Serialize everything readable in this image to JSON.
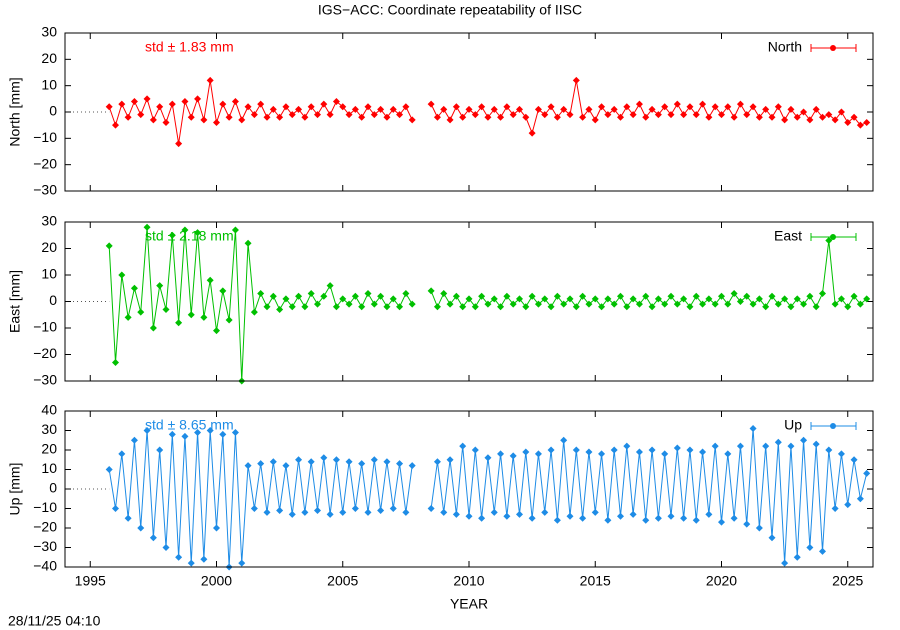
{
  "title": "IGS−ACC: Coordinate repeatability of IISC",
  "timestamp": "28/11/25 04:10",
  "chart_data": [
    {
      "type": "line",
      "ylabel": "North [mm]",
      "annotation": "std ± 1.83 mm",
      "legend": "upper right",
      "xlim": [
        1994,
        2026
      ],
      "ylim": [
        -30,
        30
      ],
      "xticks": [
        1995,
        2000,
        2005,
        2010,
        2015,
        2020,
        2025
      ],
      "yticks": [
        {
          "value": -30,
          "label": "−30"
        },
        {
          "value": -20,
          "label": "−20"
        },
        {
          "value": -10,
          "label": "−10"
        },
        0,
        10,
        20,
        30
      ],
      "x": [
        1995.75,
        1996,
        1996.25,
        1996.5,
        1996.75,
        1997,
        1997.25,
        1997.5,
        1997.75,
        1998,
        1998.25,
        1998.5,
        1998.75,
        1999,
        1999.25,
        1999.5,
        1999.75,
        2000,
        2000.25,
        2000.5,
        2000.75,
        2001,
        2001.25,
        2001.5,
        2001.75,
        2002,
        2002.25,
        2002.5,
        2002.75,
        2003,
        2003.25,
        2003.5,
        2003.75,
        2004,
        2004.25,
        2004.5,
        2004.75,
        2005,
        2005.25,
        2005.5,
        2005.75,
        2006,
        2006.25,
        2006.5,
        2006.75,
        2007,
        2007.25,
        2007.5,
        2007.75,
        2008,
        2008.25,
        2008.5,
        2008.75,
        2009,
        2009.25,
        2009.5,
        2009.75,
        2010,
        2010.25,
        2010.5,
        2010.75,
        2011,
        2011.25,
        2011.5,
        2011.75,
        2012,
        2012.25,
        2012.5,
        2012.75,
        2013,
        2013.25,
        2013.5,
        2013.75,
        2014,
        2014.25,
        2014.5,
        2014.75,
        2015,
        2015.25,
        2015.5,
        2015.75,
        2016,
        2016.25,
        2016.5,
        2016.75,
        2017,
        2017.25,
        2017.5,
        2017.75,
        2018,
        2018.25,
        2018.5,
        2018.75,
        2019,
        2019.25,
        2019.5,
        2019.75,
        2020,
        2020.25,
        2020.5,
        2020.75,
        2021,
        2021.25,
        2021.5,
        2021.75,
        2022,
        2022.25,
        2022.5,
        2022.75,
        2023,
        2023.25,
        2023.5,
        2023.75,
        2024,
        2024.25,
        2024.5,
        2024.75,
        2025,
        2025.25,
        2025.5,
        2025.75
      ],
      "series": [
        {
          "name": "North",
          "color": "#ff0000",
          "values": [
            2,
            -5,
            3,
            -2,
            4,
            -1,
            5,
            -3,
            2,
            -4,
            3,
            -12,
            4,
            -2,
            5,
            -3,
            12,
            -4,
            3,
            -2,
            4,
            -3,
            2,
            -1,
            3,
            -2,
            1,
            -2,
            2,
            -1,
            1,
            -2,
            2,
            -1,
            3,
            -1,
            4,
            2,
            -1,
            1,
            -2,
            2,
            -1,
            1,
            -2,
            1,
            -1,
            2,
            -3,
            null,
            null,
            3,
            -2,
            1,
            -3,
            2,
            -2,
            1,
            -1,
            2,
            -2,
            1,
            -2,
            2,
            -1,
            1,
            -2,
            -8,
            1,
            -1,
            2,
            -2,
            1,
            -1,
            12,
            -2,
            1,
            -3,
            2,
            -1,
            1,
            -2,
            2,
            -1,
            3,
            -2,
            1,
            -1,
            2,
            -1,
            3,
            -1,
            2,
            -1,
            3,
            -2,
            2,
            -1,
            2,
            -2,
            3,
            -1,
            2,
            -2,
            1,
            -2,
            2,
            -3,
            1,
            -2,
            0,
            -3,
            1,
            -2,
            -1,
            -3,
            0,
            -4,
            -2,
            -5,
            -4
          ]
        }
      ]
    },
    {
      "type": "line",
      "ylabel": "East [mm]",
      "annotation": "std ± 2.18 mm",
      "legend": "upper right",
      "xlim": [
        1994,
        2026
      ],
      "ylim": [
        -30,
        30
      ],
      "xticks": [
        1995,
        2000,
        2005,
        2010,
        2015,
        2020,
        2025
      ],
      "yticks": [
        {
          "value": -30,
          "label": "−30"
        },
        {
          "value": -20,
          "label": "−20"
        },
        {
          "value": -10,
          "label": "−10"
        },
        0,
        10,
        20,
        30
      ],
      "x": [
        1995.75,
        1996,
        1996.25,
        1996.5,
        1996.75,
        1997,
        1997.25,
        1997.5,
        1997.75,
        1998,
        1998.25,
        1998.5,
        1998.75,
        1999,
        1999.25,
        1999.5,
        1999.75,
        2000,
        2000.25,
        2000.5,
        2000.75,
        2001,
        2001.25,
        2001.5,
        2001.75,
        2002,
        2002.25,
        2002.5,
        2002.75,
        2003,
        2003.25,
        2003.5,
        2003.75,
        2004,
        2004.25,
        2004.5,
        2004.75,
        2005,
        2005.25,
        2005.5,
        2005.75,
        2006,
        2006.25,
        2006.5,
        2006.75,
        2007,
        2007.25,
        2007.5,
        2007.75,
        2008,
        2008.25,
        2008.5,
        2008.75,
        2009,
        2009.25,
        2009.5,
        2009.75,
        2010,
        2010.25,
        2010.5,
        2010.75,
        2011,
        2011.25,
        2011.5,
        2011.75,
        2012,
        2012.25,
        2012.5,
        2012.75,
        2013,
        2013.25,
        2013.5,
        2013.75,
        2014,
        2014.25,
        2014.5,
        2014.75,
        2015,
        2015.25,
        2015.5,
        2015.75,
        2016,
        2016.25,
        2016.5,
        2016.75,
        2017,
        2017.25,
        2017.5,
        2017.75,
        2018,
        2018.25,
        2018.5,
        2018.75,
        2019,
        2019.25,
        2019.5,
        2019.75,
        2020,
        2020.25,
        2020.5,
        2020.75,
        2021,
        2021.25,
        2021.5,
        2021.75,
        2022,
        2022.25,
        2022.5,
        2022.75,
        2023,
        2023.25,
        2023.5,
        2023.75,
        2024,
        2024.25,
        2024.5,
        2024.75,
        2025,
        2025.25,
        2025.5,
        2025.75
      ],
      "series": [
        {
          "name": "East",
          "color": "#00c000",
          "values": [
            21,
            -23,
            10,
            -6,
            5,
            -4,
            28,
            -10,
            6,
            -3,
            25,
            -8,
            27,
            -5,
            26,
            -6,
            8,
            -11,
            4,
            -7,
            27,
            -30,
            22,
            -4,
            3,
            -2,
            2,
            -3,
            1,
            -2,
            2,
            -2,
            3,
            -1,
            2,
            6,
            -2,
            1,
            -1,
            2,
            -2,
            3,
            -1,
            2,
            -2,
            1,
            -2,
            3,
            -1,
            null,
            null,
            4,
            -2,
            3,
            -1,
            2,
            -2,
            1,
            -2,
            2,
            -1,
            1,
            -2,
            2,
            -1,
            1,
            -2,
            2,
            -1,
            1,
            -2,
            2,
            -1,
            1,
            -2,
            2,
            -1,
            1,
            -2,
            1,
            -1,
            2,
            -2,
            1,
            -1,
            2,
            -2,
            1,
            -1,
            2,
            -1,
            1,
            -2,
            2,
            -1,
            1,
            -1,
            2,
            -1,
            3,
            0,
            2,
            -1,
            1,
            -2,
            2,
            -1,
            1,
            -2,
            1,
            -1,
            2,
            -2,
            3,
            23,
            -1,
            1,
            -2,
            2,
            -1,
            1
          ]
        }
      ]
    },
    {
      "type": "line",
      "ylabel": "Up [mm]",
      "annotation": "std ± 8.65 mm",
      "legend": "upper right",
      "xlabel": "YEAR",
      "xlim": [
        1994,
        2026
      ],
      "ylim": [
        -40,
        40
      ],
      "xticks": [
        1995,
        2000,
        2005,
        2010,
        2015,
        2020,
        2025
      ],
      "yticks": [
        {
          "value": -40,
          "label": "−40"
        },
        {
          "value": -30,
          "label": "−30"
        },
        {
          "value": -20,
          "label": "−20"
        },
        {
          "value": -10,
          "label": "−10"
        },
        0,
        10,
        20,
        30,
        40
      ],
      "x": [
        1995.75,
        1996,
        1996.25,
        1996.5,
        1996.75,
        1997,
        1997.25,
        1997.5,
        1997.75,
        1998,
        1998.25,
        1998.5,
        1998.75,
        1999,
        1999.25,
        1999.5,
        1999.75,
        2000,
        2000.25,
        2000.5,
        2000.75,
        2001,
        2001.25,
        2001.5,
        2001.75,
        2002,
        2002.25,
        2002.5,
        2002.75,
        2003,
        2003.25,
        2003.5,
        2003.75,
        2004,
        2004.25,
        2004.5,
        2004.75,
        2005,
        2005.25,
        2005.5,
        2005.75,
        2006,
        2006.25,
        2006.5,
        2006.75,
        2007,
        2007.25,
        2007.5,
        2007.75,
        2008,
        2008.25,
        2008.5,
        2008.75,
        2009,
        2009.25,
        2009.5,
        2009.75,
        2010,
        2010.25,
        2010.5,
        2010.75,
        2011,
        2011.25,
        2011.5,
        2011.75,
        2012,
        2012.25,
        2012.5,
        2012.75,
        2013,
        2013.25,
        2013.5,
        2013.75,
        2014,
        2014.25,
        2014.5,
        2014.75,
        2015,
        2015.25,
        2015.5,
        2015.75,
        2016,
        2016.25,
        2016.5,
        2016.75,
        2017,
        2017.25,
        2017.5,
        2017.75,
        2018,
        2018.25,
        2018.5,
        2018.75,
        2019,
        2019.25,
        2019.5,
        2019.75,
        2020,
        2020.25,
        2020.5,
        2020.75,
        2021,
        2021.25,
        2021.5,
        2021.75,
        2022,
        2022.25,
        2022.5,
        2022.75,
        2023,
        2023.25,
        2023.5,
        2023.75,
        2024,
        2024.25,
        2024.5,
        2024.75,
        2025,
        2025.25,
        2025.5,
        2025.75
      ],
      "series": [
        {
          "name": "Up",
          "color": "#1e8ce6",
          "values": [
            10,
            -10,
            18,
            -15,
            25,
            -20,
            30,
            -25,
            20,
            -30,
            28,
            -35,
            27,
            -38,
            29,
            -36,
            30,
            -20,
            28,
            -40,
            29,
            -38,
            12,
            -10,
            13,
            -12,
            14,
            -11,
            12,
            -13,
            15,
            -12,
            14,
            -11,
            16,
            -13,
            15,
            -12,
            14,
            -10,
            13,
            -12,
            15,
            -11,
            14,
            -10,
            13,
            -12,
            12,
            null,
            null,
            -10,
            14,
            -12,
            15,
            -13,
            22,
            -14,
            20,
            -15,
            16,
            -12,
            18,
            -14,
            17,
            -13,
            19,
            -15,
            18,
            -12,
            20,
            -16,
            25,
            -14,
            20,
            -15,
            19,
            -12,
            18,
            -16,
            20,
            -14,
            22,
            -13,
            19,
            -16,
            20,
            -15,
            18,
            -14,
            21,
            -15,
            20,
            -16,
            19,
            -13,
            22,
            -17,
            18,
            -15,
            22,
            -18,
            31,
            -20,
            22,
            -25,
            24,
            -38,
            22,
            -35,
            25,
            -30,
            23,
            -32,
            20,
            -10,
            18,
            -8,
            15,
            -5,
            8
          ]
        }
      ]
    }
  ]
}
